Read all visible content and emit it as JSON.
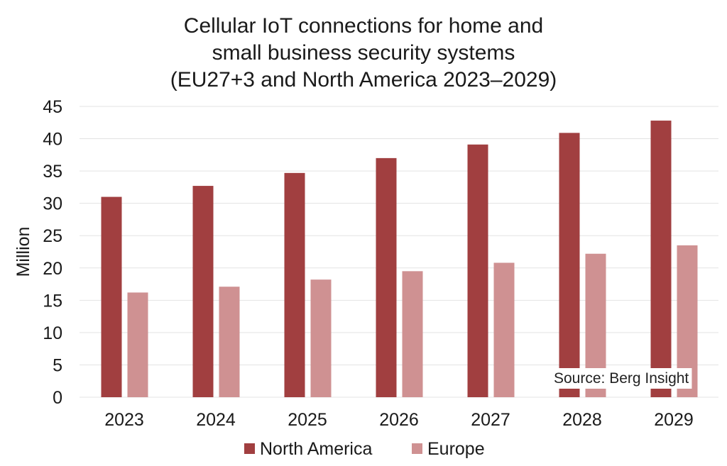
{
  "chart_data": {
    "type": "bar",
    "title": [
      "Cellular IoT connections for home and",
      "small business security systems",
      "(EU27+3 and North America 2023–2029)"
    ],
    "xlabel": "",
    "ylabel": "Million",
    "ylim": [
      0,
      45
    ],
    "yticks": [
      "0",
      "5",
      "10",
      "15",
      "20",
      "25",
      "30",
      "35",
      "40",
      "45"
    ],
    "grid": true,
    "categories": [
      "2023",
      "2024",
      "2025",
      "2026",
      "2027",
      "2028",
      "2029"
    ],
    "series": [
      {
        "name": "North America",
        "color": "#a13f40",
        "values": [
          31.0,
          32.7,
          34.7,
          37.0,
          39.1,
          40.9,
          42.8
        ]
      },
      {
        "name": "Europe",
        "color": "#cf9192",
        "values": [
          16.2,
          17.1,
          18.2,
          19.5,
          20.8,
          22.2,
          23.5
        ]
      }
    ],
    "legend": {
      "placement": "bottom"
    },
    "annotation": "Source: Berg Insight"
  }
}
